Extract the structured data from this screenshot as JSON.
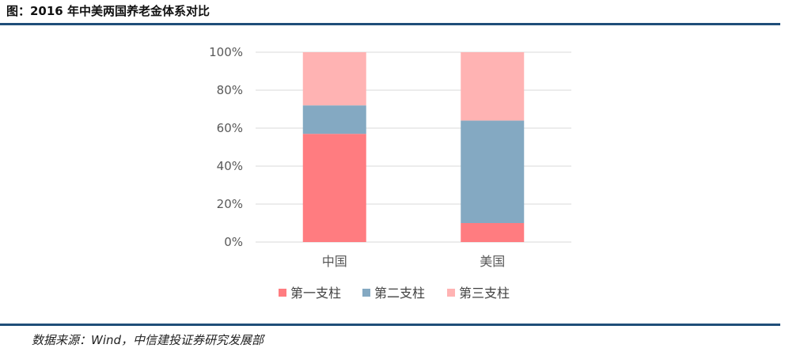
{
  "header": {
    "title": "图：2016 年中美两国养老金体系对比"
  },
  "footer": {
    "source": "数据来源：Wind，中信建投证券研究发展部"
  },
  "colors": {
    "rule": "#1f4e79",
    "grid": "#d9d9d9",
    "axis": "#d9d9d9"
  },
  "chart_data": {
    "type": "bar",
    "stacked": true,
    "categories": [
      "中国",
      "美国"
    ],
    "series": [
      {
        "name": "第一支柱",
        "values": [
          57,
          10
        ],
        "color": "#ff7c80"
      },
      {
        "name": "第二支柱",
        "values": [
          15,
          54
        ],
        "color": "#84a9c2"
      },
      {
        "name": "第三支柱",
        "values": [
          28,
          36
        ],
        "color": "#ffb3b3"
      }
    ],
    "ylim": [
      0,
      100
    ],
    "yticks": [
      0,
      20,
      40,
      60,
      80,
      100
    ],
    "ytick_labels": [
      "0%",
      "20%",
      "40%",
      "60%",
      "80%",
      "100%"
    ],
    "xlabel": "",
    "ylabel": "",
    "grid": true,
    "legend_position": "bottom"
  }
}
